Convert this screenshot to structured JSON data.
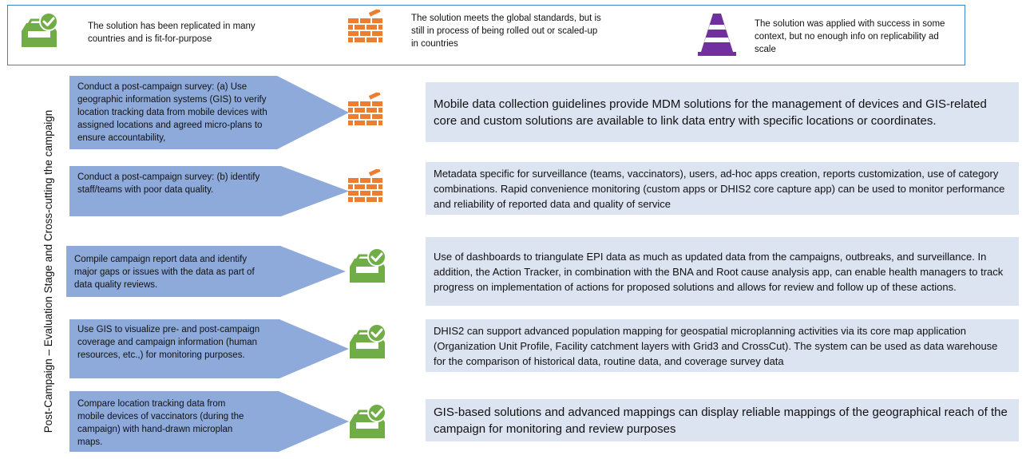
{
  "legend": [
    {
      "icon": "tray-check-icon",
      "text": "The solution has been replicated in many countries and is fit-for-purpose"
    },
    {
      "icon": "brick-wall-icon",
      "text": "The solution meets the global standards, but is still in process of being rolled out or scaled-up in countries"
    },
    {
      "icon": "traffic-cone-icon",
      "text": "The solution was applied with success in some context, but no enough info on replicability ad scale"
    }
  ],
  "stage_label": "Post-Campaign – Evaluation Stage and Cross-cutting the campaign",
  "rows": [
    {
      "activity": "Conduct a post-campaign survey: (a) Use geographic information systems (GIS) to verify location tracking data from mobile devices with assigned locations and agreed micro-plans to ensure accountability,",
      "status_icon": "brick-wall-icon",
      "solution": "Mobile data collection guidelines provide MDM solutions for the management of devices and GIS-related core and custom solutions are available to link data entry with specific locations or coordinates."
    },
    {
      "activity": "Conduct a post-campaign survey: (b) identify staff/teams with poor data quality.",
      "status_icon": "brick-wall-icon",
      "solution": "Metadata specific for surveillance (teams, vaccinators), users, ad-hoc apps creation, reports customization, use of category combinations. Rapid convenience monitoring (custom apps or DHIS2 core capture app) can be used to monitor performance and reliability of reported data and quality of service"
    },
    {
      "activity": "Compile campaign report data and identify major gaps or issues with the data as part of data quality reviews.",
      "status_icon": "tray-check-icon",
      "solution": "Use of dashboards to triangulate EPI data as much as updated data from the campaigns, outbreaks, and surveillance. In addition, the Action Tracker, in combination with the BNA and Root cause analysis app, can enable health managers to track progress on implementation of actions for proposed solutions and allows for review and follow up of these actions."
    },
    {
      "activity": "Use GIS to visualize pre- and post-campaign coverage and campaign information (human resources, etc.,) for monitoring purposes.",
      "status_icon": "tray-check-icon",
      "solution": "DHIS2 can support advanced population mapping for geospatial microplanning activities via its core map application (Organization Unit Profile, Facility catchment layers with Grid3 and CrossCut). The system can be used as data warehouse for the comparison of historical data, routine data, and coverage survey data"
    },
    {
      "activity": "Compare location tracking data from mobile devices of vaccinators (during the campaign) with hand-drawn microplan maps.",
      "status_icon": "tray-check-icon",
      "solution": "GIS-based solutions and advanced mappings can display reliable mappings of the geographical reach of the campaign for monitoring and review purposes"
    }
  ],
  "colors": {
    "arrow_fill": "#8eaadb",
    "box_fill": "#dce3f1",
    "check_green": "#70ad47",
    "brick_orange": "#ed7d31",
    "cone_purple": "#7030a0",
    "legend_border": "#3a86c8"
  }
}
